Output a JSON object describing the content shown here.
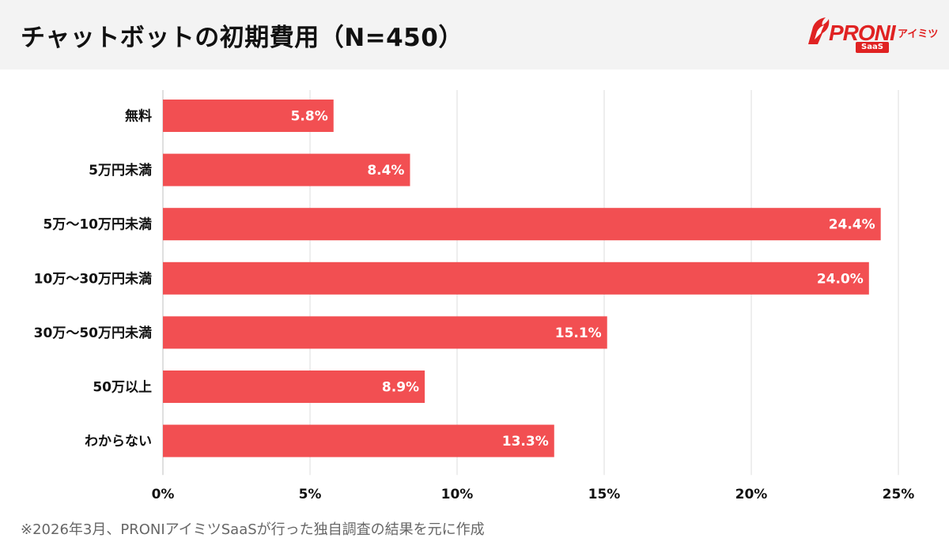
{
  "header": {
    "title": "チャットボットの初期費用（N=450）"
  },
  "logo": {
    "brand": "PRONI",
    "sub": "アイミツ",
    "tag": "SaaS"
  },
  "footnote": "※2026年3月、PRONIアイミツSaaSが行った独自調査の結果を元に作成",
  "colors": {
    "bar": "#f24f52",
    "header_bg": "#f3f3f3",
    "brand": "#e02222"
  },
  "chart_data": {
    "type": "bar",
    "orientation": "horizontal",
    "categories": [
      "無料",
      "5万円未満",
      "5万〜10万円未満",
      "10万〜30万円未満",
      "30万〜50万円未満",
      "50万以上",
      "わからない"
    ],
    "values": [
      5.8,
      8.4,
      24.4,
      24.0,
      15.1,
      8.9,
      13.3
    ],
    "value_labels": [
      "5.8%",
      "8.4%",
      "24.4%",
      "24.0%",
      "15.1%",
      "8.9%",
      "13.3%"
    ],
    "xlim": [
      0,
      25
    ],
    "xticks": [
      0,
      5,
      10,
      15,
      20,
      25
    ],
    "xtick_labels": [
      "0%",
      "5%",
      "10%",
      "15%",
      "20%",
      "25%"
    ],
    "grid": true,
    "title": "チャットボットの初期費用（N=450）"
  }
}
